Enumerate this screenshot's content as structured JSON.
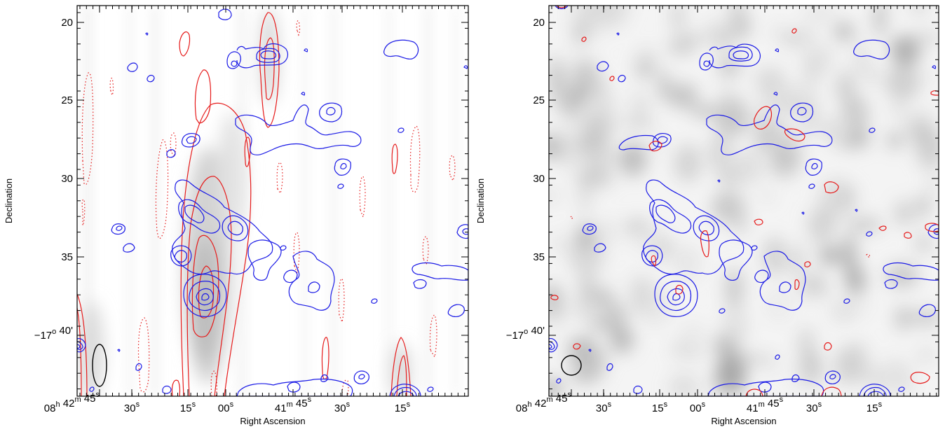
{
  "chart_data": [
    {
      "type": "contour",
      "panel": "left",
      "xlabel": "Right Ascension",
      "ylabel": "Declination",
      "xticks": [
        {
          "value": "08h42m45s",
          "label": [
            [
              "08",
              "h"
            ],
            [
              " 42",
              "m"
            ],
            [
              " 45",
              "s"
            ]
          ]
        },
        {
          "value": "30s",
          "label": [
            [
              "30",
              "s"
            ]
          ]
        },
        {
          "value": "15s",
          "label": [
            [
              "15",
              "s"
            ]
          ]
        },
        {
          "value": "00s",
          "label": [
            [
              "00",
              "s"
            ]
          ]
        },
        {
          "value": "41m45s",
          "label": [
            [
              "41",
              "m"
            ],
            [
              " 45",
              "s"
            ]
          ]
        },
        {
          "value": "30s",
          "label": [
            [
              "30",
              "s"
            ]
          ]
        },
        {
          "value": "15s",
          "label": [
            [
              "15",
              "s"
            ]
          ]
        }
      ],
      "yticks": [
        "20",
        "25",
        "30",
        "35",
        "-17°40'"
      ],
      "ytick_labels": [
        [
          [
            "20",
            ""
          ]
        ],
        [
          [
            "25",
            ""
          ]
        ],
        [
          [
            "30",
            ""
          ]
        ],
        [
          [
            "35",
            ""
          ]
        ],
        [
          [
            "−17",
            "o"
          ],
          [
            " 40'",
            ""
          ]
        ]
      ],
      "background": "light grey-scale image with vertical streaks",
      "contour_colors": {
        "blue": "#1a1ae6",
        "red_positive": "#e61a1a",
        "red_negative": "#e61a1a (dotted)"
      },
      "beam": "vertically elongated ellipse, bottom-left"
    },
    {
      "type": "contour",
      "panel": "right",
      "xlabel": "Right Ascension",
      "ylabel": "Declination",
      "xticks": [
        {
          "value": "08h42m45s",
          "label": [
            [
              "08",
              "h"
            ],
            [
              " 42",
              "m"
            ],
            [
              " 45",
              "s"
            ]
          ]
        },
        {
          "value": "30s",
          "label": [
            [
              "30",
              "s"
            ]
          ]
        },
        {
          "value": "15s",
          "label": [
            [
              "15",
              "s"
            ]
          ]
        },
        {
          "value": "00s",
          "label": [
            [
              "00",
              "s"
            ]
          ]
        },
        {
          "value": "41m45s",
          "label": [
            [
              "41",
              "m"
            ],
            [
              " 45",
              "s"
            ]
          ]
        },
        {
          "value": "30s",
          "label": [
            [
              "30",
              "s"
            ]
          ]
        },
        {
          "value": "15s",
          "label": [
            [
              "15",
              "s"
            ]
          ]
        }
      ],
      "yticks": [
        "20",
        "25",
        "30",
        "35",
        "-17°40'"
      ],
      "ytick_labels": [
        [
          [
            "20",
            ""
          ]
        ],
        [
          [
            "25",
            ""
          ]
        ],
        [
          [
            "30",
            ""
          ]
        ],
        [
          [
            "35",
            ""
          ]
        ],
        [
          [
            "−17",
            "o"
          ],
          [
            " 40'",
            ""
          ]
        ]
      ],
      "background": "mottled grey-scale image",
      "contour_colors": {
        "blue": "#1a1ae6",
        "red_positive": "#e61a1a"
      },
      "beam": "circle, bottom-left"
    }
  ]
}
